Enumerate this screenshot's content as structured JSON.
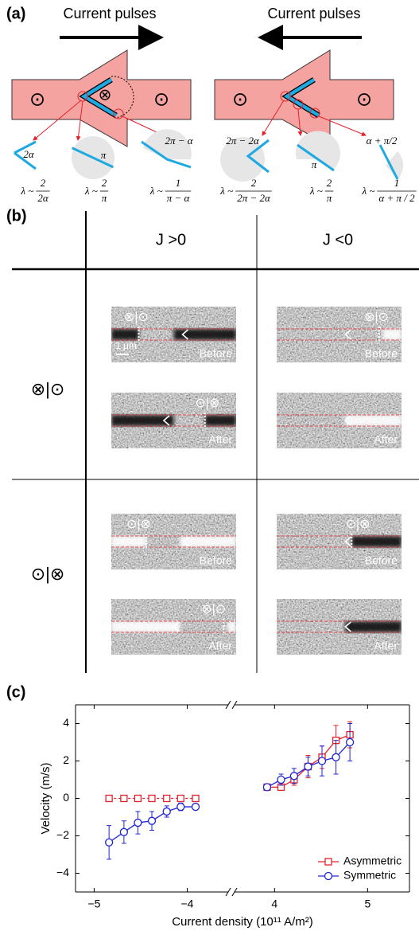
{
  "panel_a": {
    "label": "(a)",
    "pulses": [
      "Current pulses",
      "Current pulses"
    ],
    "symbols_left": [
      "⊙",
      "⊗",
      "⊙"
    ],
    "symbols_right": [
      "⊙",
      "⊙"
    ],
    "angles": [
      "2α",
      "π",
      "2π − α",
      "2π − 2α",
      "π",
      "α + π/2"
    ],
    "formulas": [
      {
        "prefix": "λ ~",
        "numerator": "2",
        "denominator": "2α"
      },
      {
        "prefix": "λ ~",
        "numerator": "2",
        "denominator": "π"
      },
      {
        "prefix": "λ ~",
        "numerator": "1",
        "denominator": "π − α"
      },
      {
        "prefix": "λ ~",
        "numerator": "2",
        "denominator": "2π − 2α"
      },
      {
        "prefix": "λ ~",
        "numerator": "2",
        "denominator": "π"
      },
      {
        "prefix": "λ ~",
        "numerator": "1",
        "denominator": "α + π / 2"
      }
    ]
  },
  "panel_b": {
    "label": "(b)",
    "columns": [
      "J >0",
      "J <0"
    ],
    "rows": [
      "⊗|⊙",
      "⊙|⊗"
    ],
    "scale_bar": "1 μm",
    "images": [
      {
        "wall": "⊗|⊙",
        "caption": "Before"
      },
      {
        "wall": "⊙|⊗",
        "caption": "After"
      },
      {
        "wall": "⊗|⊙",
        "caption": "Before"
      },
      {
        "caption": "After"
      },
      {
        "wall": "⊙|⊗",
        "caption": "Before"
      },
      {
        "wall": "⊗|⊙",
        "caption": "After"
      },
      {
        "wall": "⊙|⊗",
        "caption": "Before"
      },
      {
        "caption": "After"
      }
    ]
  },
  "chart_data": {
    "type": "line",
    "panel_label": "(c)",
    "xlabel": "Current density (10¹¹ A/m²)",
    "ylabel": "Velocity (m/s)",
    "x_segments": [
      {
        "xlim": [
          -5.2,
          -3.56
        ],
        "xticks": [
          {
            "value": -5,
            "label": "−5"
          },
          {
            "value": -4,
            "label": "−4"
          }
        ]
      },
      {
        "xlim": [
          3.57,
          5.45
        ],
        "xticks": [
          4,
          5
        ]
      }
    ],
    "ylim": [
      -5,
      5
    ],
    "yticks": [
      {
        "value": -4,
        "label": "−4"
      },
      {
        "value": -2,
        "label": "−2"
      },
      0,
      2,
      4
    ],
    "legend": "lower right",
    "x": [
      -4.84,
      -4.68,
      -4.53,
      -4.38,
      -4.22,
      -4.07,
      -3.91,
      3.92,
      4.07,
      4.21,
      4.36,
      4.51,
      4.66,
      4.81
    ],
    "series": [
      {
        "name": "Asymmetric",
        "color": "#e8202a",
        "marker": "square",
        "values": [
          0,
          0,
          0,
          0,
          0,
          0,
          0,
          0.6,
          0.6,
          1.0,
          1.7,
          2.2,
          3.1,
          3.4
        ],
        "errors": [
          0,
          0,
          0,
          0,
          0,
          0,
          0,
          0.1,
          0.15,
          0.3,
          0.6,
          0.6,
          0.8,
          0.7
        ]
      },
      {
        "name": "Symmetric",
        "color": "#1f24d6",
        "marker": "circle",
        "values": [
          -2.35,
          -1.8,
          -1.3,
          -1.2,
          -0.7,
          -0.45,
          -0.45,
          0.6,
          1.0,
          1.2,
          1.7,
          2.0,
          2.2,
          3.0
        ],
        "errors": [
          0.9,
          0.6,
          0.6,
          0.5,
          0.3,
          0.2,
          0.15,
          0.1,
          0.3,
          0.4,
          0.5,
          0.8,
          0.9,
          1.0
        ]
      }
    ]
  }
}
